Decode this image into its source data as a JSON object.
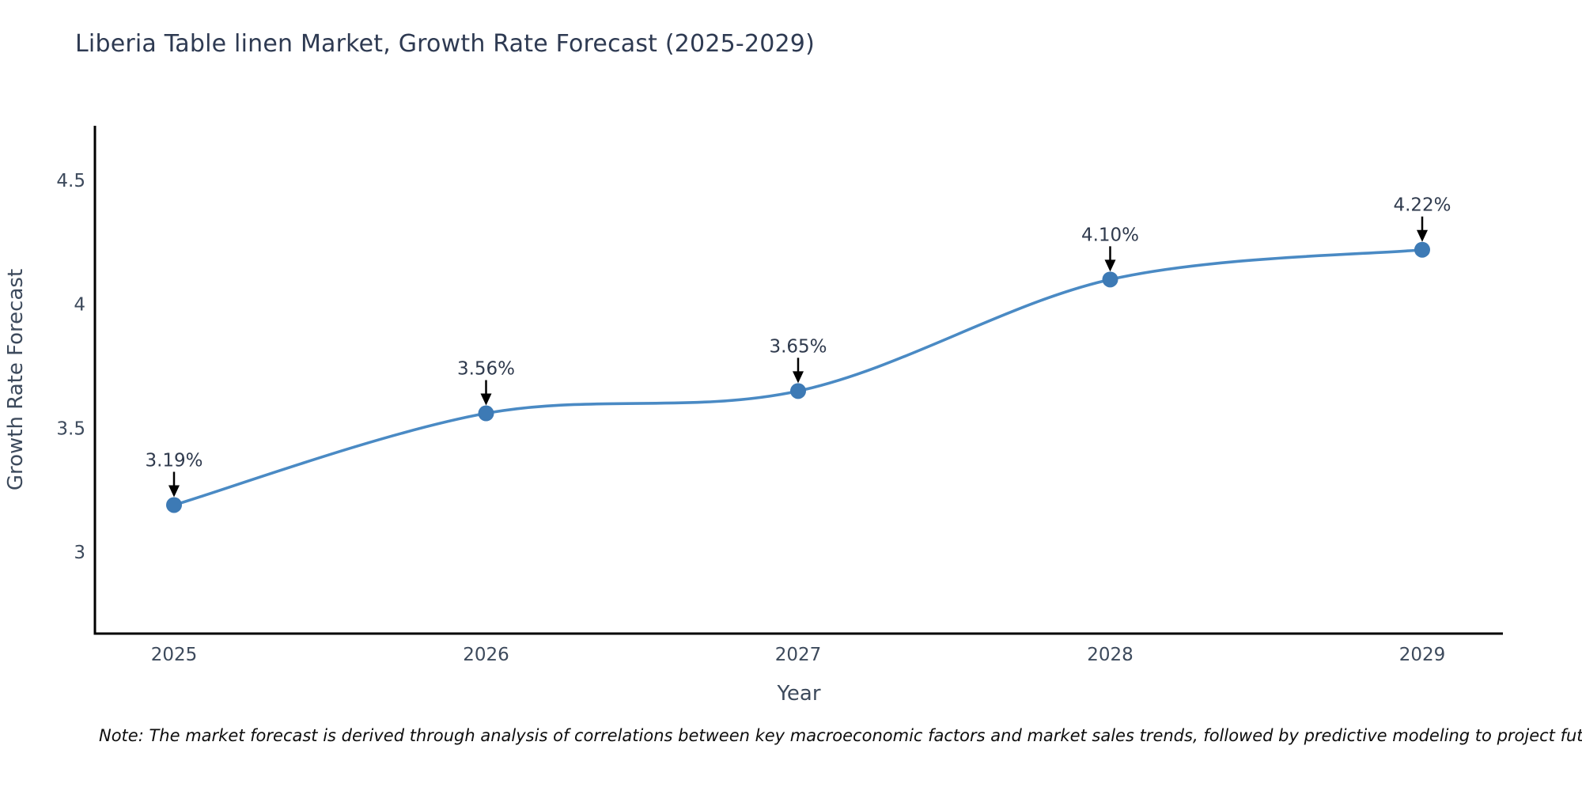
{
  "title": "Liberia Table linen Market, Growth Rate Forecast (2025-2029)",
  "note": "Note: The market forecast is derived through analysis of correlations between key macroeconomic factors and market sales trends, followed by predictive modeling to project future sales",
  "chart_data": {
    "type": "line",
    "title": "Liberia Table linen Market, Growth Rate Forecast (2025-2029)",
    "x": [
      2025,
      2026,
      2027,
      2028,
      2029
    ],
    "xticklabels": [
      "2025",
      "2026",
      "2027",
      "2028",
      "2029"
    ],
    "series": [
      {
        "name": "Growth Rate Forecast",
        "values": [
          3.19,
          3.56,
          3.65,
          4.1,
          4.22
        ],
        "point_labels": [
          "3.19%",
          "3.56%",
          "3.65%",
          "4.10%",
          "4.22%"
        ]
      }
    ],
    "xlabel": "Year",
    "ylabel": "Growth Rate Forecast",
    "yticks": [
      3,
      3.5,
      4,
      4.5
    ],
    "ytick_labels": [
      "3",
      "3.5",
      "4",
      "4.5"
    ],
    "ylim": [
      2.67,
      4.72
    ],
    "xlim": [
      2024.75,
      2029.26
    ],
    "grid": false,
    "legend_position": "none",
    "line_style": "smooth-spline",
    "annotations": "black arrows pointing down to each marker",
    "colors": {
      "line": "#4a8ac4",
      "marker": "#3d7ab5",
      "arrow": "#000000",
      "title_text": "#2e3a52",
      "tick_text": "#3d4a5c",
      "axis_spine": "#000000",
      "background": "#ffffff"
    }
  }
}
